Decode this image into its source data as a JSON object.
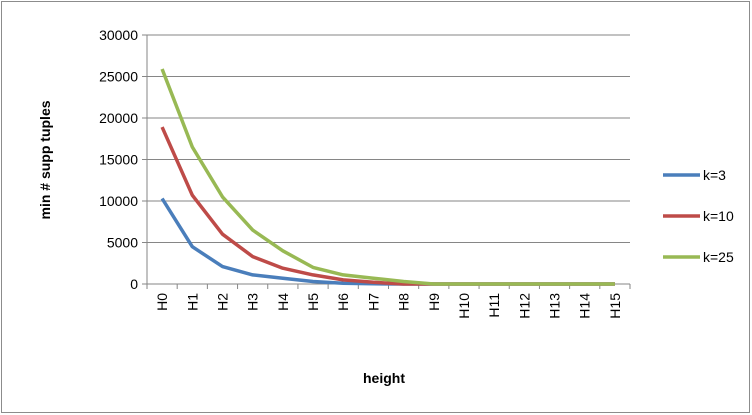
{
  "chart_data": {
    "type": "line",
    "title": "",
    "xlabel": "height",
    "ylabel": "min # supp tuples",
    "categories": [
      "H0",
      "H1",
      "H2",
      "H3",
      "H4",
      "H5",
      "H6",
      "H7",
      "H8",
      "H9",
      "H10",
      "H11",
      "H12",
      "H13",
      "H14",
      "H15"
    ],
    "ylim": [
      0,
      30000
    ],
    "yticks": [
      0,
      5000,
      10000,
      15000,
      20000,
      25000,
      30000
    ],
    "ytick_labels": [
      "0",
      "5000",
      "10000",
      "15000",
      "20000",
      "25000",
      "30000"
    ],
    "grid": "horizontal",
    "legend_position": "right",
    "series": [
      {
        "name": "k=3",
        "color": "#4a7ebb",
        "values": [
          10300,
          4500,
          2100,
          1100,
          700,
          300,
          100,
          20,
          0,
          0,
          0,
          0,
          0,
          0,
          0,
          0
        ]
      },
      {
        "name": "k=10",
        "color": "#be4b48",
        "values": [
          18900,
          10700,
          6000,
          3300,
          1900,
          1100,
          500,
          200,
          0,
          0,
          0,
          0,
          0,
          0,
          0,
          0
        ]
      },
      {
        "name": "k=25",
        "color": "#98b954",
        "values": [
          25900,
          16500,
          10500,
          6500,
          4000,
          2000,
          1100,
          700,
          300,
          0,
          0,
          0,
          0,
          0,
          0,
          0
        ]
      }
    ]
  }
}
